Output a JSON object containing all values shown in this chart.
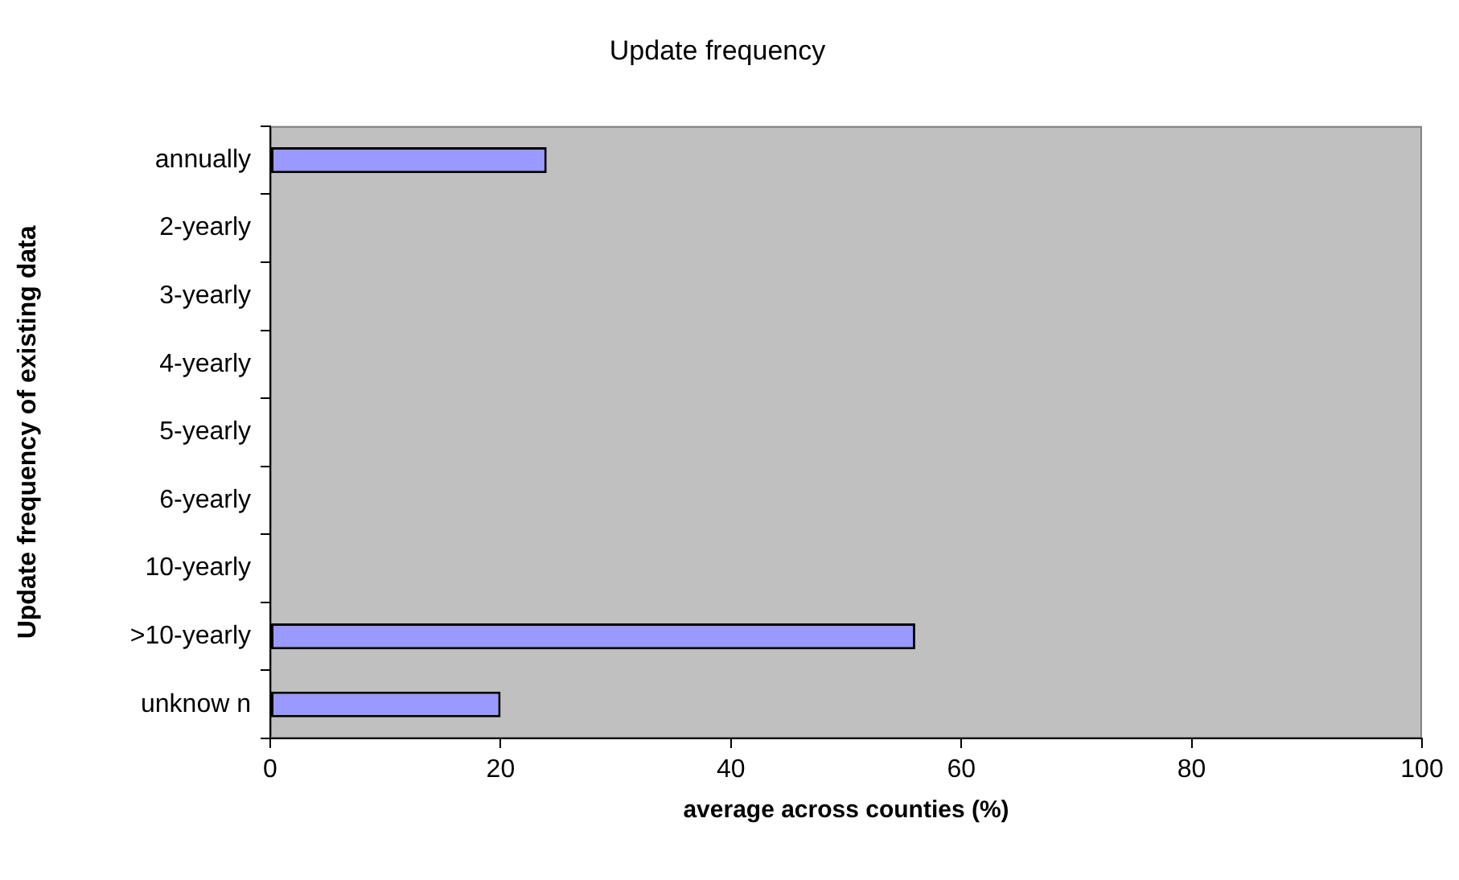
{
  "chart_data": {
    "type": "bar",
    "orientation": "horizontal",
    "title": "Update frequency",
    "xlabel": "average across counties (%)",
    "ylabel": "Update frequency of existing data",
    "categories": [
      "annually",
      "2-yearly",
      "3-yearly",
      "4-yearly",
      "5-yearly",
      "6-yearly",
      "10-yearly",
      ">10-yearly",
      "unknow n"
    ],
    "values": [
      24,
      0,
      0,
      0,
      0,
      0,
      0,
      56,
      20
    ],
    "color": "#9999ff",
    "xlim": [
      0,
      100
    ],
    "xticks": [
      0,
      20,
      40,
      60,
      80,
      100
    ]
  }
}
